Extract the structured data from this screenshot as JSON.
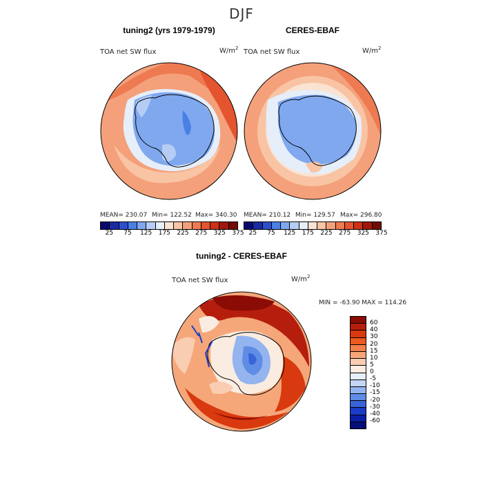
{
  "suptitle": "DJF",
  "panels": {
    "model": {
      "title": "tuning2 (yrs 1979-1979)",
      "variable": "TOA net SW flux",
      "units_base": "W/m",
      "units_exp": "2",
      "mean": "MEAN= 230.07",
      "min": "Min= 122.52",
      "max": "Max= 340.30"
    },
    "obs": {
      "title": "CERES-EBAF",
      "variable": "TOA net SW flux",
      "units_base": "W/m",
      "units_exp": "2",
      "mean": "MEAN= 210.12",
      "min": "Min= 129.57",
      "max": "Max= 296.80"
    },
    "diff": {
      "title": "tuning2 - CERES-EBAF",
      "variable": "TOA net SW flux",
      "units_base": "W/m",
      "units_exp": "2",
      "minmax": "MIN = -63.90  MAX = 114.26"
    }
  },
  "colorbar_main": {
    "colors": [
      "#0a0a6e",
      "#1a2aa0",
      "#2c4fd0",
      "#4a7fe6",
      "#7fa8ef",
      "#b5cdf4",
      "#e6eef9",
      "#fbe3d3",
      "#f8c4a4",
      "#f4a07a",
      "#ee7a52",
      "#e4552f",
      "#cc3116",
      "#a0170b",
      "#730a05"
    ],
    "labels": [
      "25",
      "75",
      "125",
      "175",
      "225",
      "275",
      "325",
      "375"
    ]
  },
  "colorbar_diff": {
    "colors": [
      "#8a0c05",
      "#b51d0c",
      "#d8390f",
      "#ec5a22",
      "#f2804a",
      "#f5a77a",
      "#f8cdb1",
      "#fbece2",
      "#e6eefb",
      "#c4d5f6",
      "#94b4ef",
      "#5f8ce4",
      "#3864d8",
      "#1b3cc6",
      "#0a1ea6",
      "#050f7a"
    ],
    "labels": [
      "60",
      "40",
      "30",
      "20",
      "15",
      "10",
      "5",
      "0",
      "-5",
      "-10",
      "-15",
      "-20",
      "-30",
      "-40",
      "-60"
    ]
  }
}
